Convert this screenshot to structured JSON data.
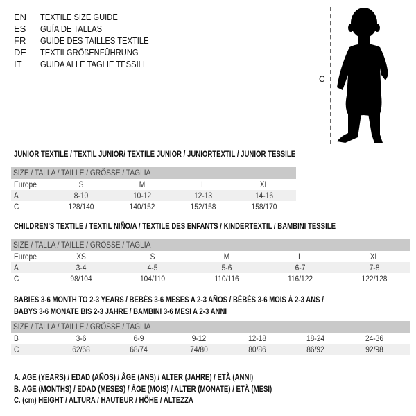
{
  "languages": [
    {
      "code": "EN",
      "title": "TEXTILE SIZE GUIDE"
    },
    {
      "code": "ES",
      "title": "GUÍA DE TALLAS"
    },
    {
      "code": "FR",
      "title": "GUIDE DES TAILLES TEXTILE"
    },
    {
      "code": "DE",
      "title": "TEXTILGRÖßENFÜHRUNG"
    },
    {
      "code": "IT",
      "title": "GUIDA ALLE TAGLIE TESSILI"
    }
  ],
  "figure": {
    "measure_label": "C",
    "icon": "child-silhouette"
  },
  "size_header": "SIZE / TALLA / TAILLE / GRÖSSE / TAGLIA",
  "tables": [
    {
      "title": "JUNIOR TEXTILE / TEXTIL JUNIOR/ TEXTILE JUNIOR / JUNIORTEXTIL / JUNIOR TESSILE",
      "rows": [
        {
          "label": "Europe",
          "values": [
            "S",
            "M",
            "L",
            "XL"
          ]
        },
        {
          "label": "A",
          "values": [
            "8-10",
            "10-12",
            "12-13",
            "14-16"
          ]
        },
        {
          "label": "C",
          "values": [
            "128/140",
            "140/152",
            "152/158",
            "158/170"
          ]
        }
      ]
    },
    {
      "title": "CHILDREN'S TEXTILE / TEXTIL NIÑO/A / TEXTILE DES ENFANTS / KINDERTEXTIL / BAMBINI TESSILE",
      "rows": [
        {
          "label": "Europe",
          "values": [
            "XS",
            "S",
            "M",
            "L",
            "XL"
          ]
        },
        {
          "label": "A",
          "values": [
            "3-4",
            "4-5",
            "5-6",
            "6-7",
            "7-8"
          ]
        },
        {
          "label": "C",
          "values": [
            "98/104",
            "104/110",
            "110/116",
            "116/122",
            "122/128"
          ]
        }
      ]
    },
    {
      "title": "BABIES 3-6 MONTH TO 2-3 YEARS / BEBÉS 3-6 MESES A 2-3 AÑOS / BÉBÉS 3-6 MOIS À 2-3 ANS /",
      "title2": "BABYS 3-6 MONATE BIS 2-3 JAHRE / BAMBINI 3-6 MESI A 2-3 ANNI",
      "rows": [
        {
          "label": "B",
          "values": [
            "3-6",
            "6-9",
            "9-12",
            "12-18",
            "18-24",
            "24-36"
          ]
        },
        {
          "label": "C",
          "values": [
            "62/68",
            "68/74",
            "74/80",
            "80/86",
            "86/92",
            "92/98"
          ]
        }
      ]
    }
  ],
  "legend": [
    "A. AGE (YEARS) / EDAD (AÑOS) / ÂGE (ANS) / ALTER (JAHRE) / ETÀ (ANNI)",
    "B. AGE (MONTHS) / EDAD (MESES) / ÂGE (MOIS) / ALTER (MONATE) / ETÀ (MESI)",
    "C. (cm) HEIGHT / ALTURA / HAUTEUR / HÖHE / ALTEZZA"
  ]
}
